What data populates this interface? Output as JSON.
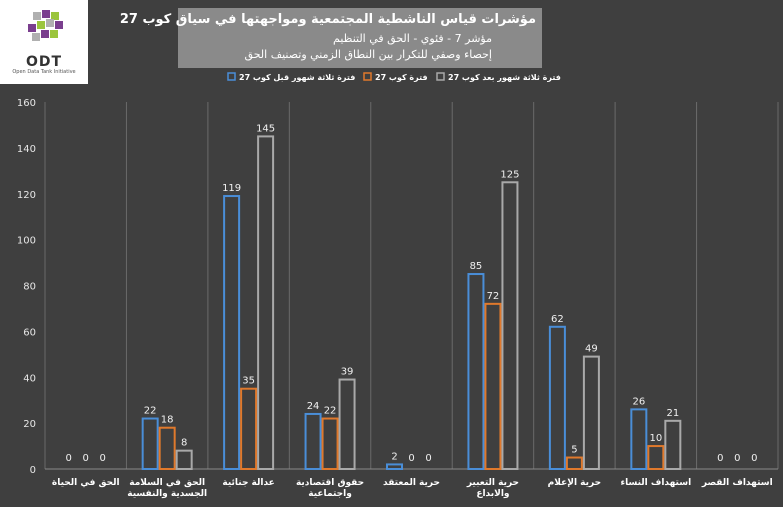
{
  "header": {
    "logo_text": "ODT",
    "logo_sub": "Open Data Tank Initiative",
    "title": "مؤشرات قياس الناشطية المجتمعية ومواجهتها في سياق كوب 27",
    "subtitle": "مؤشر 7 - فئوي - الحق في التنظيم",
    "subtitle2": "إحصاء وصفي للتكرار بين النطاق الزمني وتصنيف الحق"
  },
  "chart_data": {
    "type": "bar",
    "ylim": [
      0,
      160
    ],
    "yticks": [
      0,
      20,
      40,
      60,
      80,
      100,
      120,
      140,
      160
    ],
    "grid": true,
    "legend_position": "top",
    "categories": [
      "الحق في الحياة",
      "الحق في السلامة الجسدية والنفسية",
      "عدالة جنائية",
      "حقوق اقتصادية واجتماعية",
      "حرية المعتقد",
      "حرية التعبير والابداع",
      "حرية الإعلام",
      "استهداف النساء",
      "استهداف القصر"
    ],
    "series": [
      {
        "name": "فترة ثلاثة شهور قبل كوب 27",
        "color": "#4a8ed8",
        "values": [
          0,
          22,
          119,
          24,
          2,
          85,
          62,
          26,
          0
        ]
      },
      {
        "name": "فترة كوب 27",
        "color": "#e0792c",
        "values": [
          0,
          18,
          35,
          22,
          0,
          72,
          5,
          10,
          0
        ]
      },
      {
        "name": "فترة ثلاثة شهور بعد كوب 27",
        "color": "#a9a9a9",
        "values": [
          0,
          8,
          145,
          39,
          0,
          125,
          49,
          21,
          0
        ]
      }
    ]
  }
}
